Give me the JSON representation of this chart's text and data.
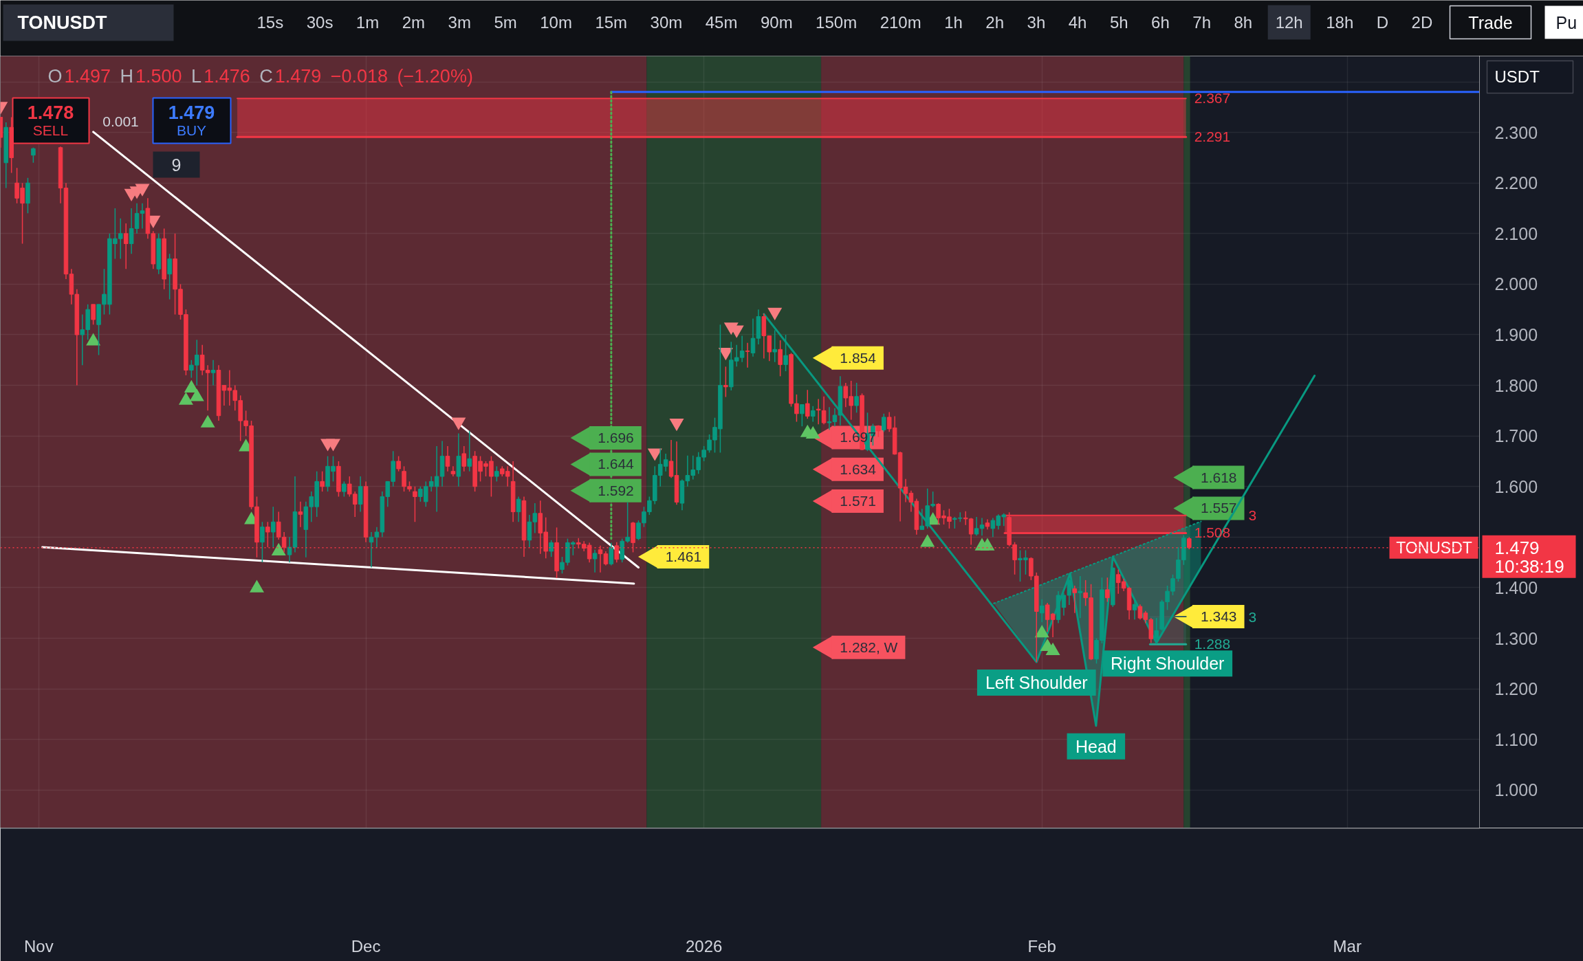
{
  "chart_data": {
    "type": "candlestick",
    "title": "TONUSDT",
    "subtitle": "O1.497 H1.500 L1.476 C1.479 −0.018 (−1.20%)",
    "x": [
      "2025-10-28T12:00",
      "2025-10-29T00:00",
      "2025-10-29T12:00",
      "2025-10-30T00:00",
      "2025-10-30T12:00",
      "2025-10-31T00:00",
      "2025-10-31T12:00",
      "2025-11-03T00:00",
      "2025-11-03T12:00",
      "2025-11-04T00:00",
      "2025-11-04T12:00",
      "2025-11-05T00:00",
      "2025-11-05T12:00",
      "2025-11-06T00:00",
      "2025-11-06T12:00",
      "2025-11-07T00:00",
      "2025-11-07T12:00",
      "2025-11-08T00:00",
      "2025-11-08T12:00",
      "2025-11-09T00:00",
      "2025-11-09T12:00",
      "2025-11-10T00:00",
      "2025-11-10T12:00",
      "2025-11-11T00:00",
      "2025-11-11T12:00",
      "2025-11-12T00:00",
      "2025-11-12T12:00",
      "2025-11-13T00:00",
      "2025-11-13T12:00",
      "2025-11-14T00:00",
      "2025-11-14T12:00",
      "2025-11-15T00:00",
      "2025-11-15T12:00",
      "2025-11-16T00:00",
      "2025-11-16T12:00",
      "2025-11-17T00:00",
      "2025-11-17T12:00",
      "2025-11-18T00:00",
      "2025-11-18T12:00",
      "2025-11-19T00:00",
      "2025-11-19T12:00",
      "2025-11-20T00:00",
      "2025-11-20T12:00",
      "2025-11-21T00:00",
      "2025-11-21T12:00",
      "2025-11-22T00:00",
      "2025-11-22T12:00",
      "2025-11-23T00:00",
      "2025-11-23T12:00",
      "2025-11-24T00:00",
      "2025-11-24T12:00",
      "2025-11-25T00:00",
      "2025-11-25T12:00",
      "2025-11-26T00:00",
      "2025-11-26T12:00",
      "2025-11-27T00:00",
      "2025-11-27T12:00",
      "2025-11-28T00:00",
      "2025-11-28T12:00",
      "2025-11-29T00:00",
      "2025-11-29T12:00",
      "2025-11-30T00:00",
      "2025-11-30T12:00",
      "2025-12-01T00:00",
      "2025-12-01T12:00",
      "2025-12-02T00:00",
      "2025-12-02T12:00",
      "2025-12-03T00:00",
      "2025-12-03T12:00",
      "2025-12-04T00:00",
      "2025-12-04T12:00",
      "2025-12-05T00:00",
      "2025-12-05T12:00",
      "2025-12-06T00:00",
      "2025-12-06T12:00",
      "2025-12-07T00:00",
      "2025-12-07T12:00",
      "2025-12-08T00:00",
      "2025-12-08T12:00",
      "2025-12-09T00:00",
      "2025-12-09T12:00",
      "2025-12-10T00:00",
      "2025-12-10T12:00",
      "2025-12-11T00:00",
      "2025-12-11T12:00",
      "2025-12-12T00:00",
      "2025-12-12T12:00",
      "2025-12-13T00:00",
      "2025-12-13T12:00",
      "2025-12-14T00:00",
      "2025-12-14T12:00",
      "2025-12-15T00:00",
      "2025-12-15T12:00",
      "2025-12-16T00:00",
      "2025-12-16T12:00",
      "2025-12-17T00:00",
      "2025-12-17T12:00",
      "2025-12-18T00:00",
      "2025-12-18T12:00",
      "2025-12-19T00:00",
      "2025-12-19T12:00",
      "2025-12-20T00:00",
      "2025-12-20T12:00",
      "2025-12-21T00:00",
      "2025-12-21T12:00",
      "2025-12-22T00:00",
      "2025-12-22T12:00",
      "2025-12-23T00:00",
      "2025-12-23T12:00",
      "2025-12-24T00:00",
      "2025-12-24T12:00",
      "2025-12-25T00:00",
      "2025-12-25T12:00",
      "2025-12-26T00:00",
      "2025-12-26T12:00",
      "2025-12-27T00:00",
      "2025-12-27T12:00",
      "2025-12-28T00:00",
      "2025-12-28T12:00",
      "2025-12-29T00:00",
      "2025-12-29T12:00",
      "2025-12-30T00:00",
      "2025-12-30T12:00",
      "2025-12-31T00:00",
      "2025-12-31T12:00",
      "2026-01-01T00:00",
      "2026-01-01T12:00",
      "2026-01-02T00:00",
      "2026-01-02T12:00",
      "2026-01-03T00:00",
      "2026-01-03T12:00",
      "2026-01-04T00:00",
      "2026-01-04T12:00",
      "2026-01-05T00:00",
      "2026-01-05T12:00",
      "2026-01-06T00:00",
      "2026-01-06T12:00",
      "2026-01-07T00:00",
      "2026-01-07T12:00",
      "2026-01-08T00:00",
      "2026-01-08T12:00",
      "2026-01-09T00:00",
      "2026-01-09T12:00",
      "2026-01-10T00:00",
      "2026-01-10T12:00",
      "2026-01-11T00:00",
      "2026-01-11T12:00",
      "2026-01-12T00:00",
      "2026-01-12T12:00",
      "2026-01-13T00:00",
      "2026-01-13T12:00",
      "2026-01-14T00:00",
      "2026-01-14T12:00",
      "2026-01-15T00:00",
      "2026-01-15T12:00",
      "2026-01-16T00:00",
      "2026-01-16T12:00",
      "2026-01-17T00:00",
      "2026-01-17T12:00",
      "2026-01-18T00:00",
      "2026-01-18T12:00",
      "2026-01-19T00:00",
      "2026-01-19T12:00",
      "2026-01-20T00:00",
      "2026-01-20T12:00",
      "2026-01-21T00:00",
      "2026-01-21T12:00",
      "2026-01-22T00:00",
      "2026-01-22T12:00",
      "2026-01-23T00:00",
      "2026-01-23T12:00",
      "2026-01-24T00:00",
      "2026-01-24T12:00",
      "2026-01-25T00:00",
      "2026-01-25T12:00",
      "2026-01-26T00:00",
      "2026-01-26T12:00",
      "2026-01-27T00:00",
      "2026-01-27T12:00",
      "2026-01-28T00:00",
      "2026-01-28T12:00",
      "2026-01-29T00:00",
      "2026-01-29T12:00",
      "2026-01-30T00:00",
      "2026-01-30T12:00",
      "2026-01-31T00:00",
      "2026-01-31T12:00",
      "2026-02-01T00:00",
      "2026-02-01T12:00",
      "2026-02-02T00:00",
      "2026-02-02T12:00",
      "2026-02-03T00:00",
      "2026-02-03T12:00",
      "2026-02-04T00:00",
      "2026-02-04T12:00",
      "2026-02-05T00:00",
      "2026-02-05T12:00",
      "2026-02-06T00:00",
      "2026-02-06T12:00",
      "2026-02-07T00:00",
      "2026-02-07T12:00",
      "2026-02-08T00:00",
      "2026-02-08T12:00",
      "2026-02-09T00:00",
      "2026-02-09T12:00",
      "2026-02-10T00:00",
      "2026-02-10T12:00",
      "2026-02-11T00:00",
      "2026-02-11T12:00",
      "2026-02-12T00:00",
      "2026-02-12T12:00",
      "2026-02-13T00:00",
      "2026-02-13T12:00",
      "2026-02-14T00:00",
      "2026-02-14T12:00"
    ],
    "ohlc": [
      [
        2.33,
        2.33,
        2.27,
        2.29
      ],
      [
        2.24,
        2.32,
        2.19,
        2.31
      ],
      [
        2.31,
        2.33,
        2.22,
        2.25
      ],
      [
        2.2,
        2.23,
        2.16,
        2.17
      ],
      [
        2.19,
        2.2,
        2.08,
        2.16
      ],
      [
        2.16,
        2.21,
        2.14,
        2.2
      ],
      [
        2.255,
        2.27,
        2.24,
        2.268
      ],
      [
        2.27,
        2.272,
        2.16,
        2.19
      ],
      [
        2.19,
        2.2,
        2.01,
        2.02
      ],
      [
        2.02,
        2.03,
        1.96,
        1.98
      ],
      [
        1.98,
        1.99,
        1.8,
        1.9
      ],
      [
        1.9,
        1.94,
        1.84,
        1.91
      ],
      [
        1.91,
        1.96,
        1.89,
        1.95
      ],
      [
        1.96,
        1.96,
        1.92,
        1.93
      ],
      [
        1.92,
        1.96,
        1.86,
        1.96
      ],
      [
        1.96,
        2.03,
        1.94,
        1.98
      ],
      [
        1.96,
        2.1,
        1.94,
        2.09
      ],
      [
        2.08,
        2.15,
        2.05,
        2.09
      ],
      [
        2.09,
        2.13,
        2.05,
        2.1
      ],
      [
        2.1,
        2.12,
        2.03,
        2.08
      ],
      [
        2.08,
        2.15,
        2.06,
        2.11
      ],
      [
        2.11,
        2.16,
        2.1,
        2.14
      ],
      [
        2.14,
        2.16,
        2.11,
        2.145
      ],
      [
        2.15,
        2.17,
        2.09,
        2.1
      ],
      [
        2.1,
        2.105,
        2.03,
        2.04
      ],
      [
        2.03,
        2.1,
        2.02,
        2.09
      ],
      [
        2.09,
        2.11,
        1.99,
        2.01
      ],
      [
        2.02,
        2.06,
        1.97,
        2.05
      ],
      [
        2.05,
        2.1,
        1.94,
        1.99
      ],
      [
        1.99,
        2.0,
        1.93,
        1.94
      ],
      [
        1.94,
        1.95,
        1.82,
        1.83
      ],
      [
        1.83,
        1.85,
        1.815,
        1.84
      ],
      [
        1.84,
        1.89,
        1.8,
        1.86
      ],
      [
        1.86,
        1.88,
        1.82,
        1.83
      ],
      [
        1.83,
        1.84,
        1.75,
        1.825
      ],
      [
        1.825,
        1.85,
        1.8,
        1.83
      ],
      [
        1.83,
        1.84,
        1.73,
        1.74
      ],
      [
        1.8,
        1.8,
        1.76,
        1.79
      ],
      [
        1.795,
        1.83,
        1.76,
        1.79
      ],
      [
        1.79,
        1.8,
        1.75,
        1.77
      ],
      [
        1.77,
        1.78,
        1.69,
        1.73
      ],
      [
        1.73,
        1.75,
        1.7,
        1.72
      ],
      [
        1.72,
        1.73,
        1.555,
        1.56
      ],
      [
        1.56,
        1.58,
        1.46,
        1.49
      ],
      [
        1.49,
        1.53,
        1.45,
        1.52
      ],
      [
        1.52,
        1.53,
        1.48,
        1.51
      ],
      [
        1.51,
        1.56,
        1.48,
        1.53
      ],
      [
        1.53,
        1.55,
        1.495,
        1.5
      ],
      [
        1.5,
        1.51,
        1.47,
        1.48
      ],
      [
        1.465,
        1.5,
        1.45,
        1.48
      ],
      [
        1.48,
        1.62,
        1.47,
        1.55
      ],
      [
        1.55,
        1.57,
        1.52,
        1.545
      ],
      [
        1.515,
        1.57,
        1.46,
        1.56
      ],
      [
        1.56,
        1.59,
        1.53,
        1.58
      ],
      [
        1.56,
        1.63,
        1.54,
        1.61
      ],
      [
        1.61,
        1.63,
        1.59,
        1.6
      ],
      [
        1.6,
        1.66,
        1.59,
        1.64
      ],
      [
        1.63,
        1.66,
        1.61,
        1.64
      ],
      [
        1.64,
        1.65,
        1.58,
        1.59
      ],
      [
        1.59,
        1.61,
        1.58,
        1.605
      ],
      [
        1.605,
        1.62,
        1.58,
        1.585
      ],
      [
        1.585,
        1.59,
        1.54,
        1.565
      ],
      [
        1.565,
        1.62,
        1.55,
        1.6
      ],
      [
        1.6,
        1.61,
        1.49,
        1.5
      ],
      [
        1.49,
        1.51,
        1.44,
        1.5
      ],
      [
        1.5,
        1.52,
        1.48,
        1.51
      ],
      [
        1.51,
        1.59,
        1.5,
        1.58
      ],
      [
        1.58,
        1.61,
        1.56,
        1.61
      ],
      [
        1.61,
        1.67,
        1.6,
        1.65
      ],
      [
        1.65,
        1.66,
        1.63,
        1.635
      ],
      [
        1.63,
        1.64,
        1.59,
        1.6
      ],
      [
        1.6,
        1.61,
        1.59,
        1.595
      ],
      [
        1.59,
        1.6,
        1.53,
        1.58
      ],
      [
        1.58,
        1.6,
        1.57,
        1.595
      ],
      [
        1.57,
        1.61,
        1.56,
        1.6
      ],
      [
        1.6,
        1.62,
        1.59,
        1.61
      ],
      [
        1.6,
        1.68,
        1.55,
        1.62
      ],
      [
        1.62,
        1.69,
        1.6,
        1.66
      ],
      [
        1.66,
        1.68,
        1.63,
        1.64
      ],
      [
        1.63,
        1.64,
        1.62,
        1.625
      ],
      [
        1.62,
        1.705,
        1.6,
        1.66
      ],
      [
        1.665,
        1.68,
        1.63,
        1.64
      ],
      [
        1.64,
        1.71,
        1.63,
        1.655
      ],
      [
        1.66,
        1.67,
        1.59,
        1.6
      ],
      [
        1.65,
        1.66,
        1.61,
        1.63
      ],
      [
        1.645,
        1.65,
        1.62,
        1.64
      ],
      [
        1.65,
        1.66,
        1.58,
        1.62
      ],
      [
        1.62,
        1.64,
        1.61,
        1.63
      ],
      [
        1.635,
        1.64,
        1.62,
        1.625
      ],
      [
        1.63,
        1.64,
        1.6,
        1.62
      ],
      [
        1.61,
        1.65,
        1.53,
        1.55
      ],
      [
        1.55,
        1.58,
        1.53,
        1.575
      ],
      [
        1.572,
        1.58,
        1.461,
        1.494
      ],
      [
        1.494,
        1.544,
        1.48,
        1.53
      ],
      [
        1.53,
        1.567,
        1.508,
        1.547
      ],
      [
        1.547,
        1.572,
        1.467,
        1.508
      ],
      [
        1.51,
        1.539,
        1.458,
        1.472
      ],
      [
        1.472,
        1.494,
        1.461,
        1.489
      ],
      [
        1.489,
        1.519,
        1.419,
        1.433
      ],
      [
        1.436,
        1.461,
        1.428,
        1.45
      ],
      [
        1.45,
        1.497,
        1.444,
        1.489
      ],
      [
        1.486,
        1.492,
        1.464,
        1.489
      ],
      [
        1.489,
        1.498,
        1.478,
        1.486
      ],
      [
        1.486,
        1.492,
        1.472,
        1.478
      ],
      [
        1.484,
        1.489,
        1.45,
        1.457
      ],
      [
        1.457,
        1.475,
        1.43,
        1.468
      ],
      [
        1.475,
        1.483,
        1.43,
        1.467
      ],
      [
        1.467,
        1.472,
        1.444,
        1.447
      ],
      [
        1.447,
        1.489,
        1.444,
        1.48
      ],
      [
        1.483,
        1.49,
        1.45,
        1.456
      ],
      [
        1.456,
        1.497,
        1.45,
        1.492
      ],
      [
        1.492,
        1.569,
        1.489,
        1.5
      ],
      [
        1.528,
        1.53,
        1.47,
        1.489
      ],
      [
        1.497,
        1.533,
        1.494,
        1.528
      ],
      [
        1.528,
        1.56,
        1.52,
        1.55
      ],
      [
        1.55,
        1.58,
        1.544,
        1.572
      ],
      [
        1.572,
        1.64,
        1.565,
        1.622
      ],
      [
        1.622,
        1.675,
        1.6,
        1.644
      ],
      [
        1.64,
        1.665,
        1.63,
        1.653
      ],
      [
        1.65,
        1.692,
        1.617,
        1.62
      ],
      [
        1.622,
        1.689,
        1.564,
        1.569
      ],
      [
        1.567,
        1.614,
        1.553,
        1.611
      ],
      [
        1.611,
        1.661,
        1.6,
        1.622
      ],
      [
        1.622,
        1.661,
        1.614,
        1.633
      ],
      [
        1.633,
        1.668,
        1.625,
        1.658
      ],
      [
        1.658,
        1.68,
        1.65,
        1.672
      ],
      [
        1.672,
        1.703,
        1.667,
        1.692
      ],
      [
        1.692,
        1.736,
        1.667,
        1.717
      ],
      [
        1.714,
        1.92,
        1.667,
        1.8
      ],
      [
        1.8,
        1.837,
        1.777,
        1.797
      ],
      [
        1.797,
        1.886,
        1.79,
        1.85
      ],
      [
        1.848,
        1.88,
        1.837,
        1.855
      ],
      [
        1.855,
        1.898,
        1.846,
        1.868
      ],
      [
        1.868,
        1.884,
        1.835,
        1.867
      ],
      [
        1.864,
        1.932,
        1.857,
        1.893
      ],
      [
        1.893,
        1.95,
        1.881,
        1.936
      ],
      [
        1.936,
        1.942,
        1.853,
        1.898
      ],
      [
        1.898,
        1.898,
        1.848,
        1.866
      ],
      [
        1.866,
        1.909,
        1.846,
        1.871
      ],
      [
        1.871,
        1.889,
        1.818,
        1.841
      ],
      [
        1.841,
        1.9,
        1.828,
        1.859
      ],
      [
        1.861,
        1.864,
        1.758,
        1.764
      ],
      [
        1.764,
        1.782,
        1.728,
        1.744
      ],
      [
        1.744,
        1.762,
        1.719,
        1.762
      ],
      [
        1.764,
        1.791,
        1.734,
        1.739
      ],
      [
        1.739,
        1.759,
        1.728,
        1.75
      ],
      [
        1.753,
        1.773,
        1.723,
        1.751
      ],
      [
        1.75,
        1.778,
        1.723,
        1.726
      ],
      [
        1.726,
        1.757,
        1.712,
        1.728
      ],
      [
        1.728,
        1.755,
        1.719,
        1.741
      ],
      [
        1.741,
        1.818,
        1.721,
        1.798
      ],
      [
        1.798,
        1.805,
        1.757,
        1.775
      ],
      [
        1.778,
        1.809,
        1.732,
        1.76
      ],
      [
        1.76,
        1.805,
        1.746,
        1.778
      ],
      [
        1.78,
        1.784,
        1.672,
        1.673
      ],
      [
        1.673,
        1.746,
        1.67,
        1.705
      ],
      [
        1.7,
        1.724,
        1.681,
        1.719
      ],
      [
        1.72,
        1.721,
        1.698,
        1.71
      ],
      [
        1.712,
        1.744,
        1.708,
        1.737
      ],
      [
        1.737,
        1.747,
        1.708,
        1.714
      ],
      [
        1.716,
        1.739,
        1.663,
        1.664
      ],
      [
        1.667,
        1.669,
        1.531,
        1.597
      ],
      [
        1.599,
        1.615,
        1.569,
        1.586
      ],
      [
        1.587,
        1.592,
        1.55,
        1.569
      ],
      [
        1.571,
        1.576,
        1.505,
        1.515
      ],
      [
        1.515,
        1.556,
        1.515,
        1.522
      ],
      [
        1.522,
        1.596,
        1.517,
        1.562
      ],
      [
        1.562,
        1.59,
        1.559,
        1.565
      ],
      [
        1.565,
        1.567,
        1.525,
        1.538
      ],
      [
        1.542,
        1.553,
        1.525,
        1.538
      ],
      [
        1.54,
        1.556,
        1.517,
        1.531
      ],
      [
        1.535,
        1.54,
        1.517,
        1.537
      ],
      [
        1.537,
        1.549,
        1.53,
        1.538
      ],
      [
        1.538,
        1.551,
        1.524,
        1.536
      ],
      [
        1.536,
        1.538,
        1.485,
        1.506
      ],
      [
        1.506,
        1.54,
        1.503,
        1.517
      ],
      [
        1.517,
        1.538,
        1.503,
        1.524
      ],
      [
        1.528,
        1.535,
        1.515,
        1.521
      ],
      [
        1.517,
        1.538,
        1.5,
        1.533
      ],
      [
        1.523,
        1.545,
        1.515,
        1.542
      ],
      [
        1.54,
        1.547,
        1.522,
        1.544
      ],
      [
        1.539,
        1.549,
        1.482,
        1.485
      ],
      [
        1.485,
        1.49,
        1.426,
        1.455
      ],
      [
        1.455,
        1.474,
        1.412,
        1.458
      ],
      [
        1.455,
        1.474,
        1.426,
        1.459
      ],
      [
        1.458,
        1.46,
        1.415,
        1.423
      ],
      [
        1.423,
        1.43,
        1.253,
        1.353
      ],
      [
        1.35,
        1.377,
        1.332,
        1.364
      ],
      [
        1.366,
        1.37,
        1.313,
        1.337
      ],
      [
        1.348,
        1.35,
        1.302,
        1.337
      ],
      [
        1.337,
        1.393,
        1.33,
        1.385
      ],
      [
        1.361,
        1.39,
        1.345,
        1.385
      ],
      [
        1.385,
        1.423,
        1.366,
        1.415
      ],
      [
        1.398,
        1.404,
        1.35,
        1.39
      ],
      [
        1.39,
        1.423,
        1.34,
        1.393
      ],
      [
        1.39,
        1.415,
        1.364,
        1.38
      ],
      [
        1.38,
        1.407,
        1.257,
        1.259
      ],
      [
        1.259,
        1.3,
        1.25,
        1.296
      ],
      [
        1.296,
        1.42,
        1.29,
        1.396
      ],
      [
        1.396,
        1.42,
        1.372,
        1.38
      ],
      [
        1.366,
        1.44,
        1.362,
        1.439
      ],
      [
        1.426,
        1.436,
        1.388,
        1.41
      ],
      [
        1.412,
        1.418,
        1.393,
        1.399
      ],
      [
        1.399,
        1.402,
        1.337,
        1.356
      ],
      [
        1.356,
        1.377,
        1.337,
        1.367
      ],
      [
        1.363,
        1.367,
        1.337,
        1.34
      ],
      [
        1.35,
        1.354,
        1.33,
        1.337
      ],
      [
        1.337,
        1.34,
        1.291,
        1.299
      ],
      [
        1.299,
        1.34,
        1.296,
        1.315
      ],
      [
        1.318,
        1.376,
        1.315,
        1.372
      ],
      [
        1.372,
        1.404,
        1.356,
        1.393
      ],
      [
        1.393,
        1.426,
        1.385,
        1.418
      ],
      [
        1.418,
        1.48,
        1.412,
        1.455
      ],
      [
        1.455,
        1.504,
        1.445,
        1.498
      ],
      [
        1.497,
        1.5,
        1.476,
        1.479
      ]
    ],
    "xlim": [
      "2025-10-28T11:30",
      "2026-03-13T03:00"
    ],
    "xticks": [
      {
        "value": "2025-11-01",
        "label": "Nov"
      },
      {
        "value": "2025-12-01",
        "label": "Dec"
      },
      {
        "value": "2026-01-01",
        "label": "2026"
      },
      {
        "value": "2026-02-01",
        "label": "Feb"
      },
      {
        "value": "2026-03-01",
        "label": "Mar"
      }
    ],
    "ylim": [
      0.925,
      2.451
    ],
    "yticks": [
      {
        "value": 1.0,
        "label": "1.000"
      },
      {
        "value": 1.1,
        "label": "1.100"
      },
      {
        "value": 1.2,
        "label": "1.200"
      },
      {
        "value": 1.3,
        "label": "1.300"
      },
      {
        "value": 1.4,
        "label": "1.400"
      },
      {
        "value": 1.5,
        "label": null
      },
      {
        "value": 1.6,
        "label": "1.600"
      },
      {
        "value": 1.7,
        "label": "1.700"
      },
      {
        "value": 1.8,
        "label": "1.800"
      },
      {
        "value": 1.9,
        "label": "1.900"
      },
      {
        "value": 2.0,
        "label": "2.000"
      },
      {
        "value": 2.1,
        "label": "2.100"
      },
      {
        "value": 2.2,
        "label": "2.200"
      },
      {
        "value": 2.3,
        "label": "2.300"
      },
      {
        "value": 2.4,
        "label": null
      }
    ],
    "grid": true,
    "bands": [
      {
        "axis": "x",
        "from": "2025-10-28T11:30",
        "to": "2025-12-26T18:00",
        "color": "#5c2a33"
      },
      {
        "axis": "x",
        "from": "2025-12-26T18:00",
        "to": "2026-01-11T18:00",
        "color": "#26432f"
      },
      {
        "axis": "x",
        "from": "2026-01-11T18:00",
        "to": "2026-02-14T00:00",
        "color": "#5c2a33"
      },
      {
        "axis": "x",
        "from": "2026-02-14T00:00",
        "to": "2026-02-14T14:00",
        "color": "#26432f"
      }
    ],
    "ref_lines": [
      {
        "axis": "y",
        "value": 1.479,
        "label": "1.479",
        "color": "#f23645",
        "line_style": "dotted"
      }
    ],
    "series": [
      {
        "type": "line",
        "color": "#f23645",
        "x": [
          "2025-11-19T05:00",
          "2026-02-14T05:00"
        ],
        "values": [
          2.367,
          2.367
        ],
        "lower": [
          2.291,
          2.291
        ],
        "upper": [
          2.367,
          2.367
        ],
        "value_labels": [
          null,
          "2.367"
        ]
      },
      {
        "type": "line",
        "color": "#f23645",
        "x": [
          "2025-11-19T05:00",
          "2026-02-14T05:00"
        ],
        "values": [
          2.291,
          2.291
        ],
        "value_labels": [
          null,
          "2.291"
        ]
      },
      {
        "type": "line",
        "color": "#f23645",
        "x": [
          "2026-01-28T14:00",
          "2026-02-14T05:00"
        ],
        "values": [
          1.543,
          1.543
        ],
        "lower": [
          1.508,
          1.508
        ],
        "upper": [
          1.543,
          1.543
        ]
      },
      {
        "type": "line",
        "color": "#f23645",
        "x": [
          "2026-01-28T14:00",
          "2026-02-14T05:00"
        ],
        "values": [
          1.508,
          1.508
        ],
        "value_labels": [
          null,
          "1.508"
        ]
      },
      {
        "type": "line",
        "color": "#3e605d",
        "x": [
          "2026-02-10T22:00",
          "2026-02-14T05:00"
        ],
        "values": [
          1.343,
          1.343
        ],
        "lower": [
          1.288,
          1.288
        ],
        "upper": [
          1.343,
          1.343
        ]
      },
      {
        "type": "line",
        "color": "#22ab94",
        "x": [
          "2026-02-10T22:00",
          "2026-02-14T05:00"
        ],
        "values": [
          1.288,
          1.288
        ],
        "value_labels": [
          null,
          "1.288"
        ]
      },
      {
        "type": "line",
        "color": "#089981",
        "line_style": "dotted",
        "x": [
          "2026-01-27T14:00",
          "2026-01-31T12:00",
          "2026-02-03T14:00",
          "2026-02-05T23:00",
          "2026-02-07T12:00",
          "2026-02-11T12:00",
          "2026-02-15T14:00"
        ],
        "values": [
          1.369,
          1.402,
          1.429,
          1.449,
          1.462,
          1.496,
          1.531
        ],
        "lower": [
          1.369,
          1.253,
          1.428,
          1.127,
          1.461,
          1.291,
          1.44
        ],
        "upper": [
          1.369,
          1.402,
          1.429,
          1.449,
          1.462,
          1.496,
          1.531
        ]
      },
      {
        "type": "line",
        "color": "#ffffff",
        "x": [
          "2025-11-06T00:00",
          "2025-12-26T00:00"
        ],
        "values": [
          2.301,
          1.44
        ]
      },
      {
        "type": "line",
        "color": "#ffffff",
        "x": [
          "2025-11-01T08:00",
          "2025-12-25T14:00"
        ],
        "values": [
          1.48,
          1.408
        ]
      },
      {
        "type": "line",
        "color": "#089981",
        "x": [
          "2026-01-06T12:00",
          "2026-01-31T12:00",
          "2026-02-03T14:00",
          "2026-02-05T23:00",
          "2026-02-07T12:00",
          "2026-02-11T12:00",
          "2026-02-26T00:00"
        ],
        "values": [
          1.941,
          1.253,
          1.428,
          1.127,
          1.461,
          1.291,
          1.819
        ]
      },
      {
        "type": "line",
        "color": "#2962ff",
        "x": [
          "2025-12-23T12:00",
          "2026-03-13T03:00"
        ],
        "values": [
          2.38,
          2.38
        ]
      },
      {
        "type": "line",
        "color": "#4caf50",
        "line_style": "dotted",
        "x": [
          "2025-12-23T12:00",
          "2025-12-23T12:00"
        ],
        "values": [
          2.38,
          1.495
        ]
      },
      {
        "type": "scatter",
        "marker": "triangle-down",
        "color": "#f77c80",
        "x": [
          "2025-10-28T12:00",
          "2025-11-09T12:00",
          "2025-11-10T00:00",
          "2025-11-10T12:00",
          "2025-11-11T12:00",
          "2025-11-27T12:00",
          "2025-11-28T00:00",
          "2025-12-09T12:00",
          "2025-12-27T12:00",
          "2025-12-29T12:00",
          "2026-01-03T00:00",
          "2026-01-03T12:00",
          "2026-01-04T00:00",
          "2026-01-07T12:00"
        ],
        "values": [
          2.352,
          2.18,
          2.185,
          2.19,
          2.127,
          1.686,
          1.686,
          1.728,
          1.667,
          1.726,
          1.866,
          1.916,
          1.91,
          1.945
        ]
      },
      {
        "type": "scatter",
        "marker": "triangle",
        "color": "#5ec463",
        "x": [
          "2025-11-06T00:00",
          "2025-11-14T12:00",
          "2025-11-15T00:00",
          "2025-11-15T12:00",
          "2025-11-16T12:00",
          "2025-11-20T00:00",
          "2025-11-20T12:00",
          "2025-11-21T00:00",
          "2025-11-23T00:00",
          "2026-01-10T12:00",
          "2026-01-11T00:00",
          "2026-01-21T12:00",
          "2026-01-22T00:00",
          "2026-01-26T12:00",
          "2026-01-27T00:00",
          "2026-02-01T00:00",
          "2026-02-01T12:00",
          "2026-02-02T00:00"
        ],
        "values": [
          1.887,
          1.77,
          1.794,
          1.777,
          1.725,
          1.678,
          1.534,
          1.399,
          1.472,
          1.706,
          1.703,
          1.489,
          1.533,
          1.482,
          1.482,
          1.31,
          1.283,
          1.275
        ]
      },
      {
        "type": "scatter",
        "marker": "triangle",
        "color": "#ffeb3b",
        "x": [
          "2026-01-12T05:00",
          "2025-12-27T05:00",
          "2026-02-14T07:00"
        ],
        "values": [
          1.854,
          1.461,
          1.343
        ],
        "value_labels": [
          "1.854",
          "1.461",
          "1.343"
        ]
      },
      {
        "type": "scatter",
        "marker": "triangle",
        "color": "#f7525f",
        "x": [
          "2026-01-12T05:00",
          "2026-01-12T05:00",
          "2026-01-12T05:00",
          "2026-01-12T05:00"
        ],
        "values": [
          1.697,
          1.634,
          1.571,
          1.282
        ],
        "value_labels": [
          "1.697",
          "1.634",
          "1.571",
          "1.282, W"
        ]
      },
      {
        "type": "scatter",
        "marker": "triangle",
        "color": "#4caf50",
        "x": [
          "2025-12-21T00:00",
          "2025-12-21T00:00",
          "2025-12-21T00:00",
          "2026-02-14T07:00",
          "2026-02-14T07:00"
        ],
        "values": [
          1.696,
          1.644,
          1.592,
          1.618,
          1.557
        ],
        "value_labels": [
          "1.696",
          "1.644",
          "1.592",
          "1.618",
          "1.557"
        ]
      }
    ],
    "annotations": [
      "TONUSDT",
      "10:38:19",
      "1.478",
      "SELL",
      "0.001",
      "1.479",
      "BUY",
      "9",
      "USDT",
      "15s 30s 1m 2m 3m 5m 10m 15m 30m 45m 90m 150m 210m 1h 2h 3h 4h 5h 6h 7h 8h 12h 18h D 2D",
      "Trade",
      "Pu",
      "3",
      "3",
      {
        "text": "Left Shoulder",
        "x": "2026-01-31T12:00",
        "y": 1.253
      },
      {
        "text": "Head",
        "x": "2026-02-05T23:00",
        "y": 1.127
      },
      {
        "text": "Right Shoulder",
        "x": "2026-02-11T12:00",
        "y": 1.291
      }
    ]
  }
}
